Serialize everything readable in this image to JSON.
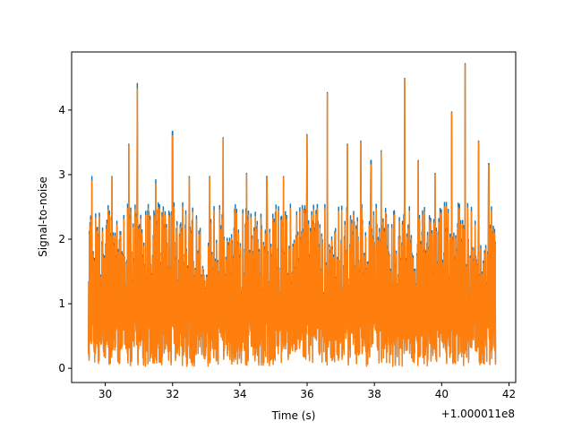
{
  "chart_data": {
    "type": "line",
    "title": "",
    "xlabel": "Time (s)",
    "ylabel": "Signal-to-noise",
    "x_offset_label": "+1.000011e8",
    "xlim": [
      29.0,
      42.2
    ],
    "ylim": [
      -0.22,
      4.9
    ],
    "x_ticks": [
      30,
      32,
      34,
      36,
      38,
      40,
      42
    ],
    "x_tick_labels": [
      "30",
      "32",
      "34",
      "36",
      "38",
      "40",
      "42"
    ],
    "y_ticks": [
      0,
      1,
      2,
      3,
      4
    ],
    "y_tick_labels": [
      "0",
      "1",
      "2",
      "3",
      "4"
    ],
    "grid": false,
    "legend": "none",
    "x_range": [
      29.5,
      41.6
    ],
    "series": [
      {
        "color": "#1f77b4",
        "envelope_min": 0.05,
        "envelope_max": 2.55,
        "peaks": [
          {
            "x": 29.6,
            "y": 2.95
          },
          {
            "x": 30.2,
            "y": 2.95
          },
          {
            "x": 30.7,
            "y": 3.45
          },
          {
            "x": 30.95,
            "y": 4.39
          },
          {
            "x": 31.5,
            "y": 2.9
          },
          {
            "x": 32.0,
            "y": 3.65
          },
          {
            "x": 32.5,
            "y": 2.95
          },
          {
            "x": 33.1,
            "y": 2.95
          },
          {
            "x": 33.5,
            "y": 3.55
          },
          {
            "x": 34.2,
            "y": 3.0
          },
          {
            "x": 34.8,
            "y": 2.95
          },
          {
            "x": 35.3,
            "y": 2.95
          },
          {
            "x": 36.0,
            "y": 3.6
          },
          {
            "x": 36.6,
            "y": 4.25
          },
          {
            "x": 37.2,
            "y": 3.45
          },
          {
            "x": 37.6,
            "y": 3.5
          },
          {
            "x": 37.9,
            "y": 3.2
          },
          {
            "x": 38.2,
            "y": 3.35
          },
          {
            "x": 38.9,
            "y": 4.47
          },
          {
            "x": 39.3,
            "y": 3.2
          },
          {
            "x": 39.8,
            "y": 3.0
          },
          {
            "x": 40.3,
            "y": 3.95
          },
          {
            "x": 40.7,
            "y": 4.7
          },
          {
            "x": 41.1,
            "y": 3.5
          },
          {
            "x": 41.4,
            "y": 3.15
          }
        ]
      },
      {
        "color": "#ff7f0e",
        "envelope_min": 0.03,
        "envelope_max": 2.5,
        "peaks": [
          {
            "x": 29.6,
            "y": 2.9
          },
          {
            "x": 30.2,
            "y": 2.95
          },
          {
            "x": 30.7,
            "y": 3.45
          },
          {
            "x": 30.95,
            "y": 4.33
          },
          {
            "x": 31.5,
            "y": 2.85
          },
          {
            "x": 32.0,
            "y": 3.6
          },
          {
            "x": 32.5,
            "y": 2.95
          },
          {
            "x": 33.1,
            "y": 2.95
          },
          {
            "x": 33.5,
            "y": 3.55
          },
          {
            "x": 34.2,
            "y": 3.0
          },
          {
            "x": 34.8,
            "y": 2.95
          },
          {
            "x": 35.3,
            "y": 2.95
          },
          {
            "x": 36.0,
            "y": 3.6
          },
          {
            "x": 36.6,
            "y": 4.25
          },
          {
            "x": 37.2,
            "y": 3.45
          },
          {
            "x": 37.6,
            "y": 3.5
          },
          {
            "x": 37.9,
            "y": 3.15
          },
          {
            "x": 38.2,
            "y": 3.35
          },
          {
            "x": 38.9,
            "y": 4.47
          },
          {
            "x": 39.3,
            "y": 3.2
          },
          {
            "x": 39.8,
            "y": 3.0
          },
          {
            "x": 40.3,
            "y": 3.95
          },
          {
            "x": 40.7,
            "y": 4.7
          },
          {
            "x": 41.1,
            "y": 3.5
          },
          {
            "x": 41.4,
            "y": 3.15
          }
        ]
      }
    ]
  }
}
